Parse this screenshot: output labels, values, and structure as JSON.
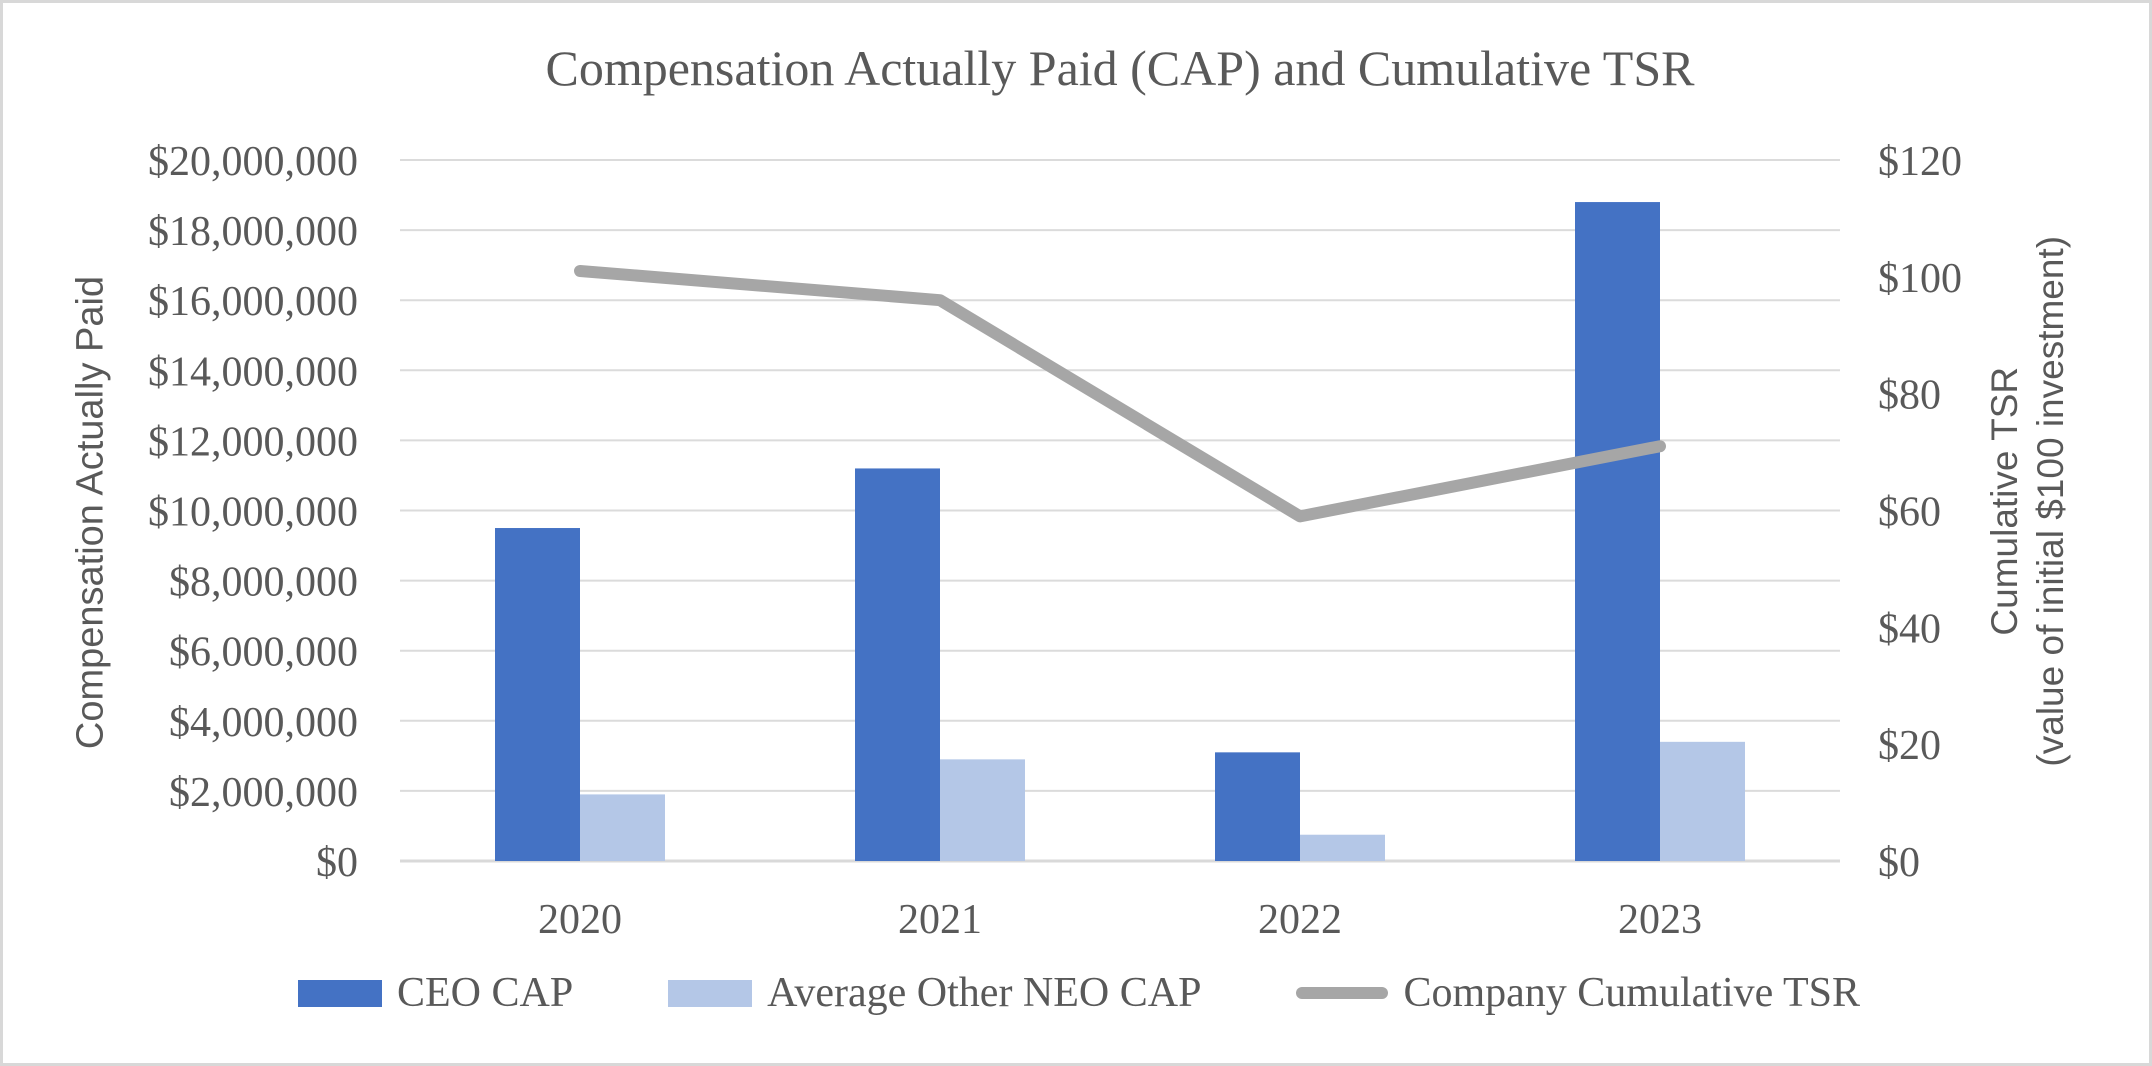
{
  "title": "Compensation Actually Paid (CAP) and Cumulative TSR",
  "chart_data": {
    "type": "combo-bar-line",
    "categories": [
      "2020",
      "2021",
      "2022",
      "2023"
    ],
    "series": [
      {
        "name": "CEO CAP",
        "type": "bar",
        "axis": "left",
        "color": "#4472C4",
        "values": [
          9500000,
          11200000,
          3100000,
          18800000
        ]
      },
      {
        "name": "Average Other NEO CAP",
        "type": "bar",
        "axis": "left",
        "color": "#B4C7E7",
        "values": [
          1900000,
          2900000,
          750000,
          3400000
        ]
      },
      {
        "name": "Company Cumulative TSR",
        "type": "line",
        "axis": "right",
        "color": "#A6A6A6",
        "values": [
          101,
          96,
          59,
          71
        ]
      }
    ],
    "left_axis": {
      "title": "Compensation Actually Paid",
      "min": 0,
      "max": 20000000,
      "tick_step": 2000000,
      "tick_labels_top_to_bottom": [
        "$20,000,000",
        "$18,000,000",
        "$16,000,000",
        "$14,000,000",
        "$12,000,000",
        "$10,000,000",
        "$8,000,000",
        "$6,000,000",
        "$4,000,000",
        "$2,000,000",
        "$0"
      ]
    },
    "right_axis": {
      "title_lines": [
        "Cumulative TSR",
        "(value of initial $100 investment)"
      ],
      "min": 0,
      "max": 120,
      "tick_step": 20,
      "tick_labels_top_to_bottom": [
        "$120",
        "$100",
        "$80",
        "$60",
        "$40",
        "$20",
        "$0"
      ]
    },
    "grid": true,
    "legend_position": "bottom",
    "colors": {
      "text": "#595959",
      "gridline": "#DBDBDB",
      "axis_line": "#D9D9D9",
      "background": "#FFFFFF",
      "frame_border": "#D8D8D8"
    }
  }
}
